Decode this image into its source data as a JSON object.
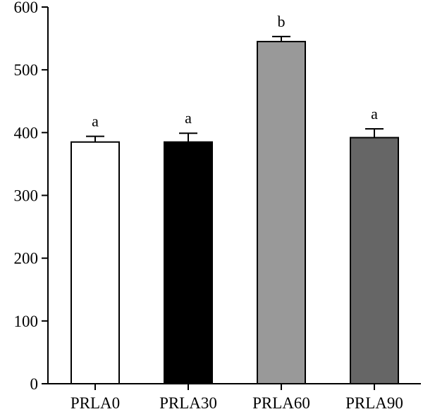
{
  "chart_data": {
    "type": "bar",
    "categories": [
      "PRLA0",
      "PRLA30",
      "PRLA60",
      "PRLA90"
    ],
    "values": [
      385,
      385,
      545,
      392
    ],
    "errors": [
      9,
      14,
      8,
      14
    ],
    "significance_letters": [
      "a",
      "a",
      "b",
      "a"
    ],
    "bar_colors": [
      "#ffffff",
      "#000000",
      "#999999",
      "#666666"
    ],
    "ylim": [
      0,
      600
    ],
    "yticks": [
      0,
      100,
      200,
      300,
      400,
      500,
      600
    ],
    "ytick_labels": [
      "0",
      "100",
      "200",
      "300",
      "400",
      "500",
      "600"
    ],
    "title": "",
    "xlabel": "",
    "ylabel": "",
    "grid": false
  }
}
